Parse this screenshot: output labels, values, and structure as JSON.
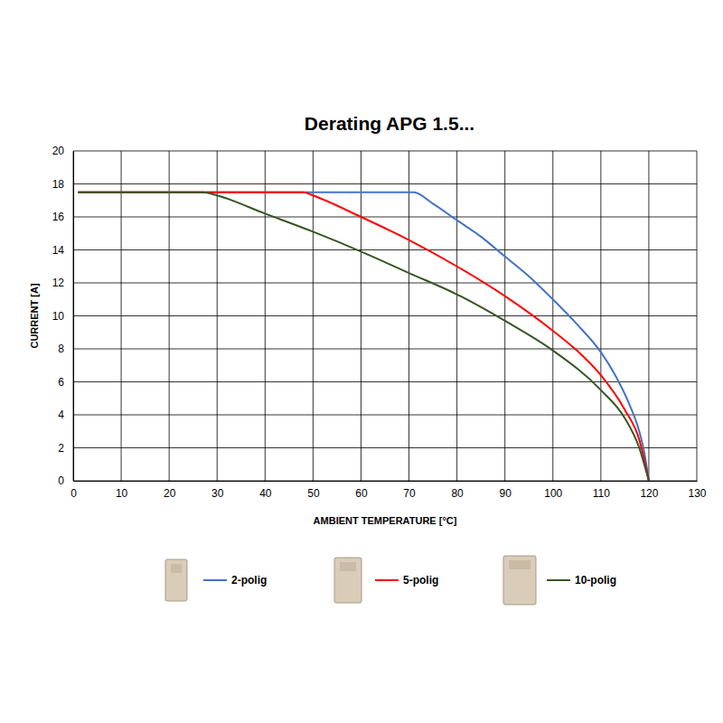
{
  "chart_data": {
    "type": "line",
    "title": "Derating APG 1.5...",
    "x_label": "AMBIENT TEMPERATURE [°C]",
    "y_label": "CURRENT [A]",
    "xlim": [
      0,
      130
    ],
    "ylim": [
      0,
      20
    ],
    "xticks": [
      0,
      10,
      20,
      30,
      40,
      50,
      60,
      70,
      80,
      90,
      100,
      110,
      120,
      130
    ],
    "yticks": [
      0,
      2,
      4,
      6,
      8,
      10,
      12,
      14,
      16,
      18,
      20
    ],
    "grid": true,
    "legend": "bottom",
    "series": [
      {
        "name": "2-polig",
        "color": "#4472c4",
        "x": [
          1,
          71,
          75,
          80,
          85,
          90,
          95,
          100,
          105,
          110,
          113,
          116,
          118,
          119,
          120
        ],
        "values": [
          17.5,
          17.5,
          16.8,
          15.8,
          14.8,
          13.6,
          12.4,
          11.0,
          9.5,
          7.8,
          6.4,
          4.6,
          3.0,
          1.8,
          0
        ]
      },
      {
        "name": "5-polig",
        "color": "#ff0000",
        "x": [
          1,
          48,
          50,
          60,
          70,
          80,
          90,
          100,
          105,
          110,
          115,
          118,
          120
        ],
        "values": [
          17.5,
          17.5,
          17.3,
          16.0,
          14.6,
          13.0,
          11.2,
          9.1,
          7.9,
          6.4,
          4.3,
          2.5,
          0
        ]
      },
      {
        "name": "10-polig",
        "color": "#375623",
        "x": [
          1,
          27,
          30,
          40,
          50,
          60,
          70,
          80,
          90,
          100,
          110,
          115,
          118,
          120
        ],
        "values": [
          17.5,
          17.5,
          17.3,
          16.2,
          15.1,
          13.9,
          12.6,
          11.3,
          9.7,
          7.9,
          5.5,
          3.8,
          2.0,
          0
        ]
      }
    ]
  }
}
